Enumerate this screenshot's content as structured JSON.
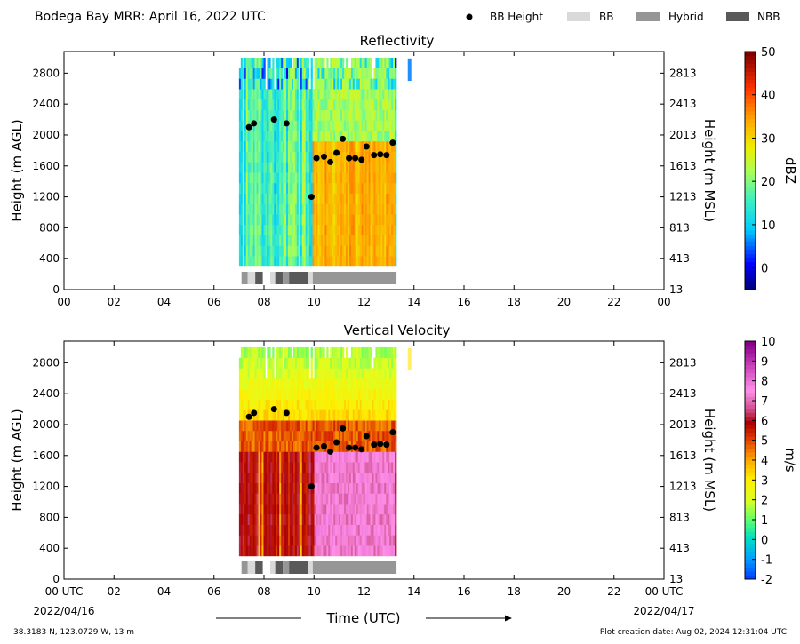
{
  "header": {
    "title": "Bodega Bay MRR:  April 16, 2022 UTC",
    "legend": [
      {
        "label": "BB Height",
        "kind": "dot",
        "color": "#000000"
      },
      {
        "label": "BB",
        "kind": "box",
        "color": "#d9d9d9"
      },
      {
        "label": "Hybrid",
        "kind": "box",
        "color": "#969696"
      },
      {
        "label": "NBB",
        "kind": "box",
        "color": "#595959"
      }
    ]
  },
  "footer": {
    "location": "38.3183 N, 123.0729 W, 13 m",
    "creation": "Plot creation date: Aug 02, 2024 12:31:04 UTC",
    "time_axis_label": "Time (UTC)",
    "start_date": "2022/04/16",
    "end_date": "2022/04/17"
  },
  "chart_data": [
    {
      "type": "heatmap",
      "title": "Reflectivity",
      "ylabel": "Height (m AGL)",
      "ylabel_right": "Height (m MSL)",
      "colorbar_label": "dBZ",
      "x_range_hours": [
        0,
        24
      ],
      "ylim": [
        0,
        3080
      ],
      "x_ticks": [
        "00",
        "02",
        "04",
        "06",
        "08",
        "10",
        "12",
        "14",
        "16",
        "18",
        "20",
        "22",
        "00"
      ],
      "y_ticks": [
        0,
        400,
        800,
        1200,
        1600,
        2000,
        2400,
        2800
      ],
      "y_ticks_right": [
        "13",
        "413",
        "813",
        "1213",
        "1613",
        "2013",
        "2413",
        "2813"
      ],
      "colorbar_ticks": [
        "0",
        "10",
        "20",
        "30",
        "40",
        "50"
      ],
      "colorbar_range": [
        -5,
        50
      ],
      "data_extent_hours": [
        7.0,
        13.3
      ],
      "bb_height_m": [
        [
          7.4,
          2100
        ],
        [
          7.6,
          2150
        ],
        [
          8.4,
          2200
        ],
        [
          8.9,
          2150
        ],
        [
          9.9,
          1200
        ],
        [
          10.1,
          1700
        ],
        [
          10.4,
          1720
        ],
        [
          10.65,
          1650
        ],
        [
          10.9,
          1770
        ],
        [
          11.15,
          1950
        ],
        [
          11.4,
          1700
        ],
        [
          11.65,
          1700
        ],
        [
          11.9,
          1680
        ],
        [
          12.1,
          1850
        ],
        [
          12.4,
          1740
        ],
        [
          12.65,
          1750
        ],
        [
          12.9,
          1740
        ],
        [
          13.15,
          1900
        ]
      ],
      "bb_type_segments": [
        [
          7.1,
          7.35,
          "Hybrid"
        ],
        [
          7.35,
          7.65,
          "BB"
        ],
        [
          7.65,
          7.95,
          "NBB"
        ],
        [
          8.25,
          8.45,
          "BB"
        ],
        [
          8.45,
          8.75,
          "NBB"
        ],
        [
          8.75,
          9.0,
          "Hybrid"
        ],
        [
          9.0,
          9.75,
          "NBB"
        ],
        [
          9.75,
          9.95,
          "BB"
        ],
        [
          9.95,
          13.3,
          "Hybrid"
        ]
      ]
    },
    {
      "type": "heatmap",
      "title": "Vertical Velocity",
      "ylabel": "Height (m AGL)",
      "ylabel_right": "Height (m MSL)",
      "colorbar_label": "m/s",
      "x_range_hours": [
        0,
        24
      ],
      "ylim": [
        0,
        3080
      ],
      "x_ticks": [
        "00 UTC",
        "02",
        "04",
        "06",
        "08",
        "10",
        "12",
        "14",
        "16",
        "18",
        "20",
        "22",
        "00 UTC"
      ],
      "y_ticks": [
        0,
        400,
        800,
        1200,
        1600,
        2000,
        2400,
        2800
      ],
      "y_ticks_right": [
        "13",
        "413",
        "813",
        "1213",
        "1613",
        "2013",
        "2413",
        "2813"
      ],
      "colorbar_ticks": [
        "-2",
        "-1",
        "0",
        "1",
        "2",
        "3",
        "4",
        "5",
        "6",
        "7",
        "8",
        "9",
        "10"
      ],
      "colorbar_range": [
        -2,
        10
      ],
      "data_extent_hours": [
        7.0,
        13.3
      ],
      "bb_height_m": [
        [
          7.4,
          2100
        ],
        [
          7.6,
          2150
        ],
        [
          8.4,
          2200
        ],
        [
          8.9,
          2150
        ],
        [
          9.9,
          1200
        ],
        [
          10.1,
          1700
        ],
        [
          10.4,
          1720
        ],
        [
          10.65,
          1650
        ],
        [
          10.9,
          1770
        ],
        [
          11.15,
          1950
        ],
        [
          11.4,
          1700
        ],
        [
          11.65,
          1700
        ],
        [
          11.9,
          1680
        ],
        [
          12.1,
          1850
        ],
        [
          12.4,
          1740
        ],
        [
          12.65,
          1750
        ],
        [
          12.9,
          1740
        ],
        [
          13.15,
          1900
        ]
      ],
      "bb_type_segments": [
        [
          7.1,
          7.35,
          "Hybrid"
        ],
        [
          7.35,
          7.65,
          "BB"
        ],
        [
          7.65,
          7.95,
          "NBB"
        ],
        [
          8.25,
          8.45,
          "BB"
        ],
        [
          8.45,
          8.75,
          "NBB"
        ],
        [
          8.75,
          9.0,
          "Hybrid"
        ],
        [
          9.0,
          9.75,
          "NBB"
        ],
        [
          9.75,
          9.95,
          "BB"
        ],
        [
          9.95,
          13.3,
          "Hybrid"
        ]
      ]
    }
  ]
}
